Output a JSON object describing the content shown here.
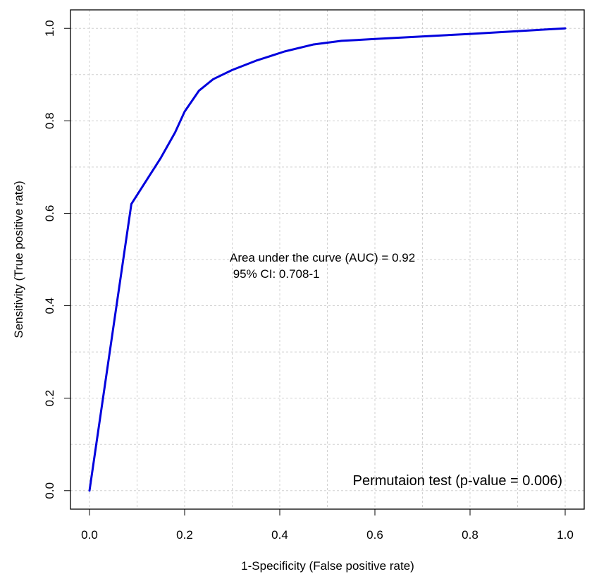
{
  "chart_data": {
    "type": "line",
    "title": "",
    "xlabel": "1-Specificity (False positive rate)",
    "ylabel": "Sensitivity (True positive rate)",
    "xlim": [
      -0.04,
      1.04
    ],
    "ylim": [
      -0.04,
      1.04
    ],
    "x_ticks": [
      0.0,
      0.2,
      0.4,
      0.6,
      0.8,
      1.0
    ],
    "y_ticks": [
      0.0,
      0.2,
      0.4,
      0.6,
      0.8,
      1.0
    ],
    "x_tick_labels": [
      "0.0",
      "0.2",
      "0.4",
      "0.6",
      "0.8",
      "1.0"
    ],
    "y_tick_labels": [
      "0.0",
      "0.2",
      "0.4",
      "0.6",
      "0.8",
      "1.0"
    ],
    "grid": true,
    "series": [
      {
        "color": "#0000dd",
        "x": [
          0.0,
          0.088,
          0.15,
          0.18,
          0.2,
          0.23,
          0.26,
          0.3,
          0.35,
          0.41,
          0.47,
          0.53,
          0.6,
          0.8,
          1.0
        ],
        "y": [
          0.0,
          0.62,
          0.72,
          0.775,
          0.82,
          0.865,
          0.89,
          0.91,
          0.93,
          0.95,
          0.965,
          0.973,
          0.977,
          0.988,
          1.0
        ]
      }
    ],
    "annotations": [
      {
        "text": "Area under the curve (AUC) = 0.92"
      },
      {
        "text": " 95% CI: 0.708-1"
      },
      {
        "text": "Permutaion test (p-value = 0.006)"
      }
    ]
  }
}
